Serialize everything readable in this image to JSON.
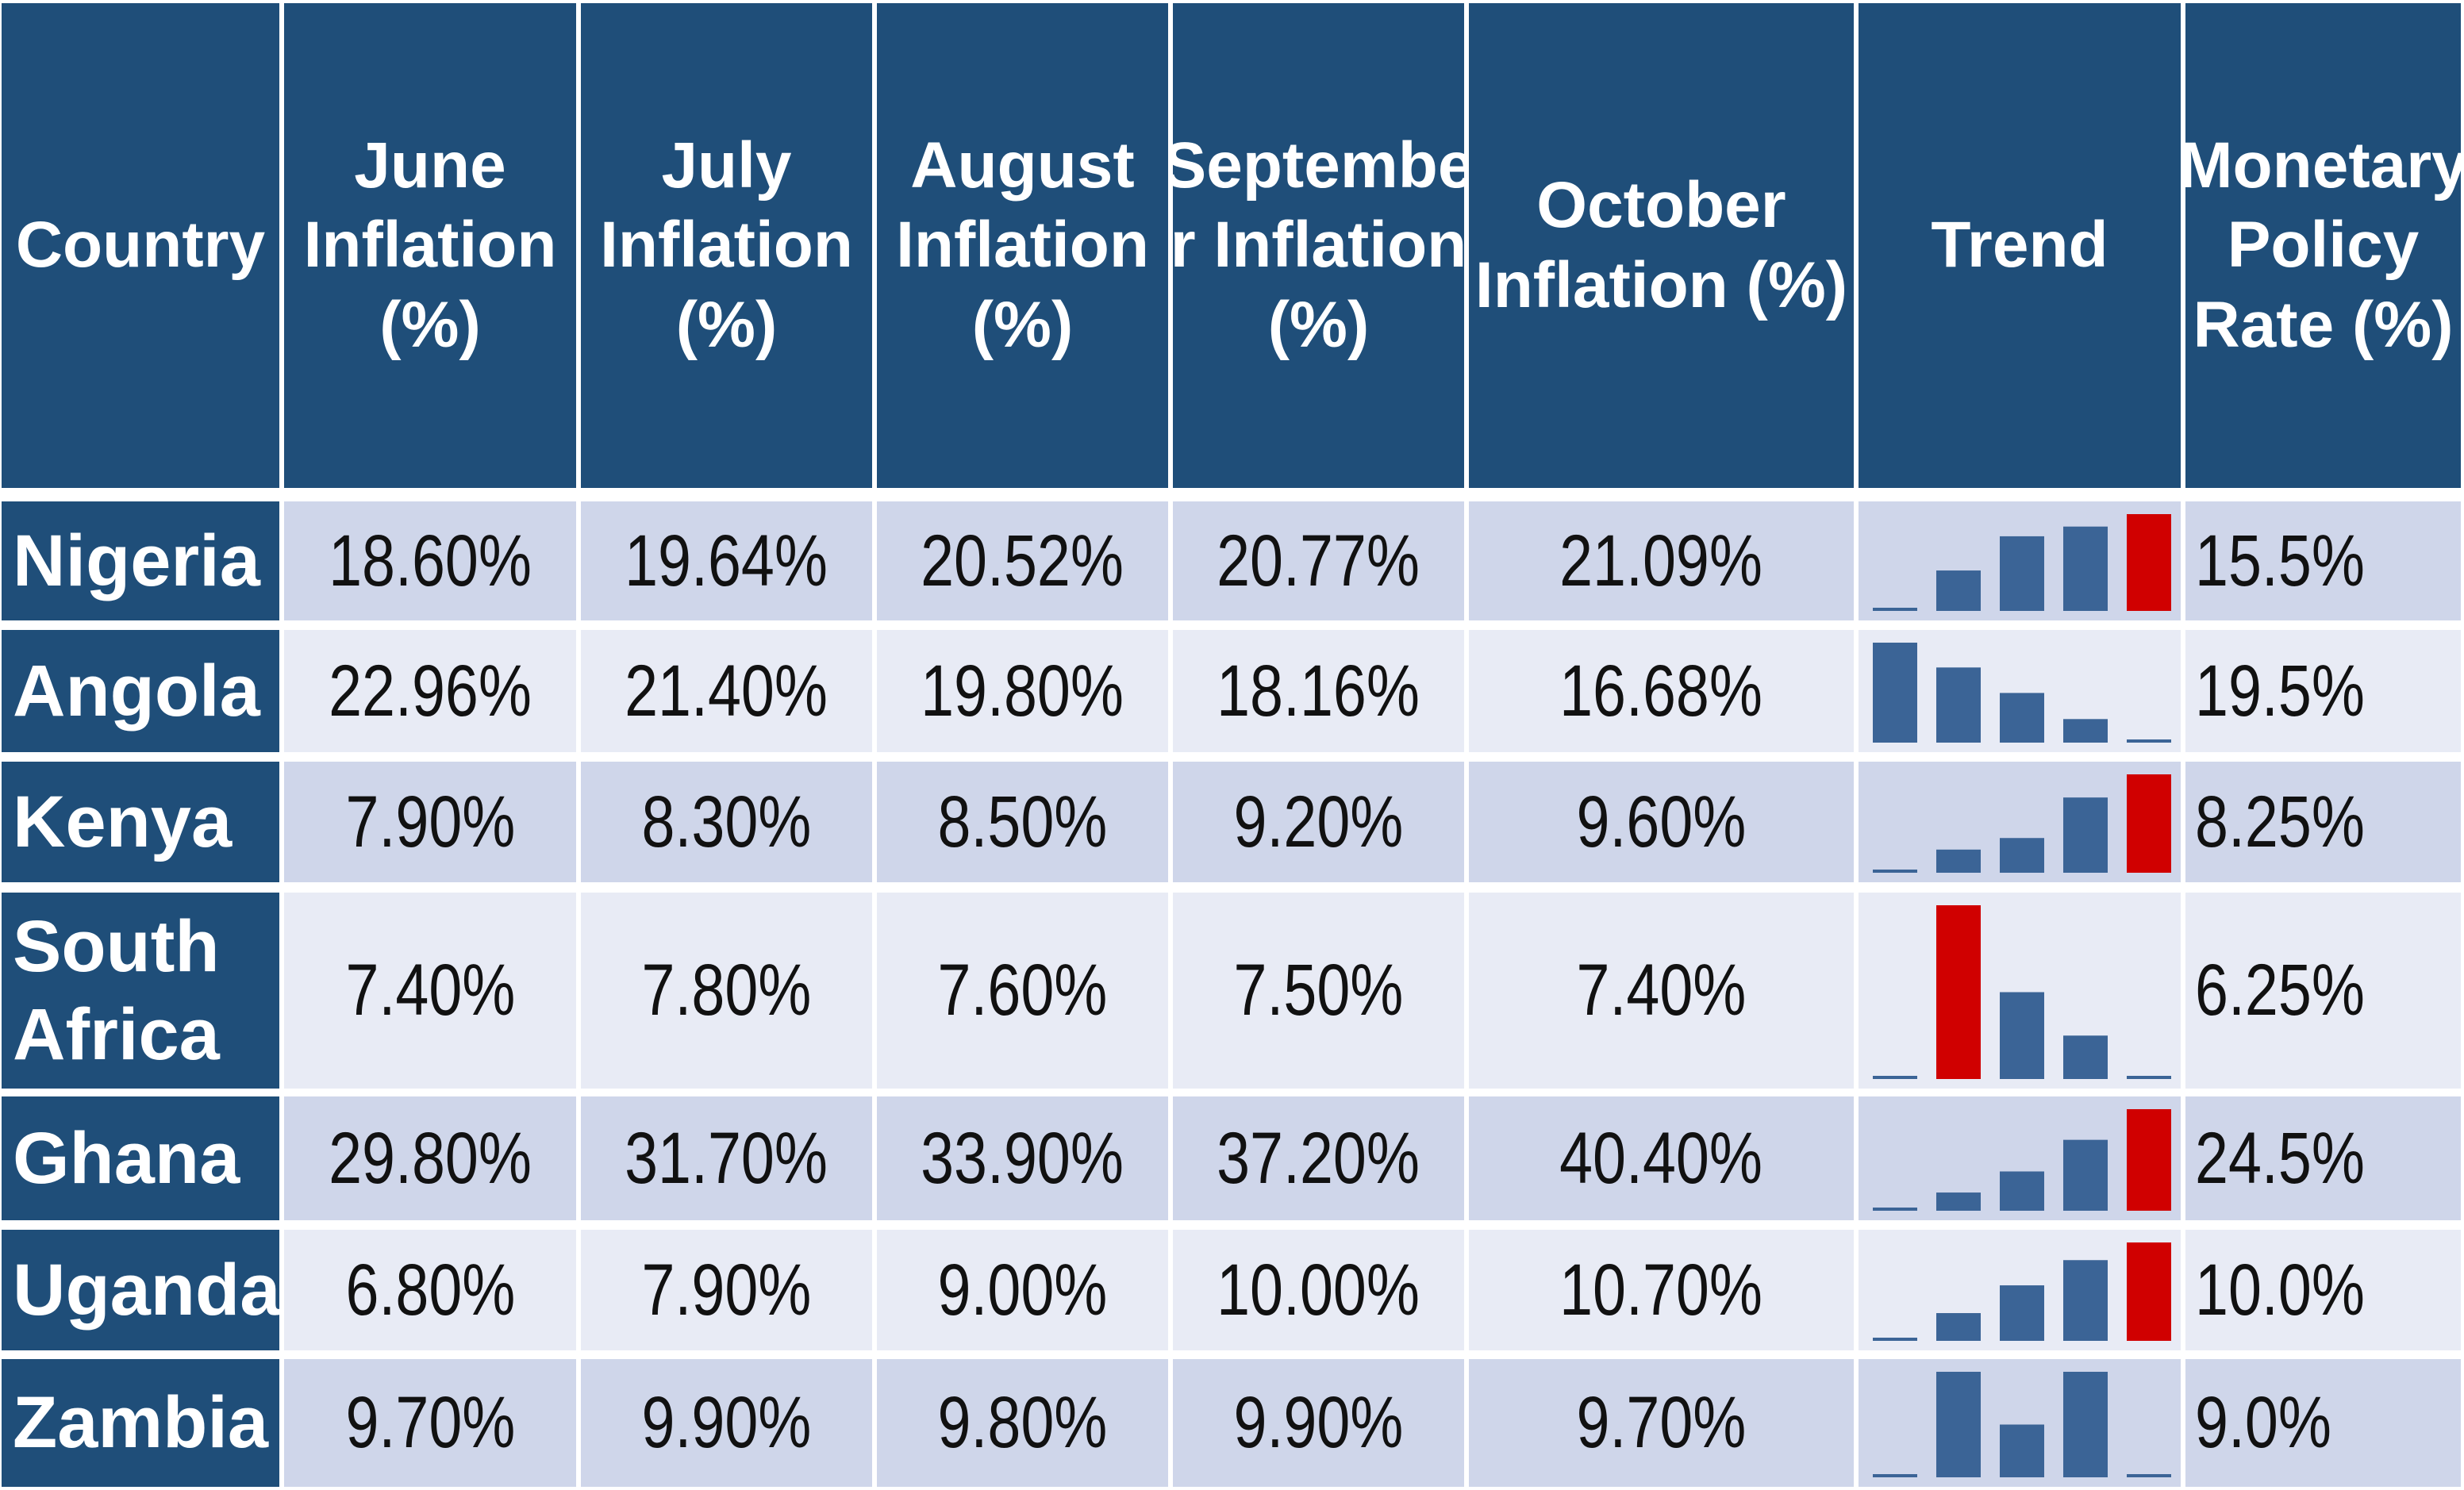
{
  "colors": {
    "header_bg": "#1f4e79",
    "row_dark": "#cfd6ea",
    "row_light": "#e8ebf5",
    "bar_normal": "#3b6496",
    "bar_highlight": "#d00000",
    "trend_baseline": "#3b6496"
  },
  "headers": {
    "country": "Country",
    "june": [
      "June",
      "Inflation",
      "(%)"
    ],
    "july": [
      "July",
      "Inflation",
      "(%)"
    ],
    "august": [
      "August",
      "Inflation",
      "(%)"
    ],
    "september": [
      "Septembe",
      "r Inflation",
      "(%)"
    ],
    "october": [
      "October",
      "Inflation (%)"
    ],
    "trend": "Trend",
    "mpr": [
      "Monetary",
      "Policy",
      "Rate (%)"
    ]
  },
  "rows": [
    {
      "country": [
        "Nigeria"
      ],
      "values": [
        "18.60%",
        "19.64%",
        "20.52%",
        "20.77%",
        "21.09%"
      ],
      "mpr": "15.5%"
    },
    {
      "country": [
        "Angola"
      ],
      "values": [
        "22.96%",
        "21.40%",
        "19.80%",
        "18.16%",
        "16.68%"
      ],
      "mpr": "19.5%"
    },
    {
      "country": [
        "Kenya"
      ],
      "values": [
        "7.90%",
        "8.30%",
        "8.50%",
        "9.20%",
        "9.60%"
      ],
      "mpr": "8.25%"
    },
    {
      "country": [
        "South",
        "Africa"
      ],
      "values": [
        "7.40%",
        "7.80%",
        "7.60%",
        "7.50%",
        "7.40%"
      ],
      "mpr": "6.25%"
    },
    {
      "country": [
        "Ghana"
      ],
      "values": [
        "29.80%",
        "31.70%",
        "33.90%",
        "37.20%",
        "40.40%"
      ],
      "mpr": "24.5%"
    },
    {
      "country": [
        "Uganda"
      ],
      "values": [
        "6.80%",
        "7.90%",
        "9.00%",
        "10.00%",
        "10.70%"
      ],
      "mpr": "10.0%"
    },
    {
      "country": [
        "Zambia"
      ],
      "values": [
        "9.70%",
        "9.90%",
        "9.80%",
        "9.90%",
        "9.70%"
      ],
      "mpr": "9.0%"
    }
  ],
  "chart_data": {
    "type": "table",
    "categories": [
      "June",
      "July",
      "August",
      "September",
      "October"
    ],
    "series": [
      {
        "name": "Nigeria",
        "values": [
          18.6,
          19.64,
          20.52,
          20.77,
          21.09
        ],
        "highlight_index": 4
      },
      {
        "name": "Angola",
        "values": [
          22.96,
          21.4,
          19.8,
          18.16,
          16.68
        ],
        "highlight_index": -1
      },
      {
        "name": "Kenya",
        "values": [
          7.9,
          8.3,
          8.5,
          9.2,
          9.6
        ],
        "highlight_index": 4
      },
      {
        "name": "South Africa",
        "values": [
          7.4,
          7.8,
          7.6,
          7.5,
          7.4
        ],
        "highlight_index": 1
      },
      {
        "name": "Ghana",
        "values": [
          29.8,
          31.7,
          33.9,
          37.2,
          40.4
        ],
        "highlight_index": 4
      },
      {
        "name": "Uganda",
        "values": [
          6.8,
          7.9,
          9.0,
          10.0,
          10.7
        ],
        "highlight_index": 4
      },
      {
        "name": "Zambia",
        "values": [
          9.7,
          9.9,
          9.8,
          9.9,
          9.7
        ],
        "highlight_index": -1
      }
    ],
    "monetary_policy_rate": [
      15.5,
      19.5,
      8.25,
      6.25,
      24.5,
      10.0,
      9.0
    ]
  }
}
